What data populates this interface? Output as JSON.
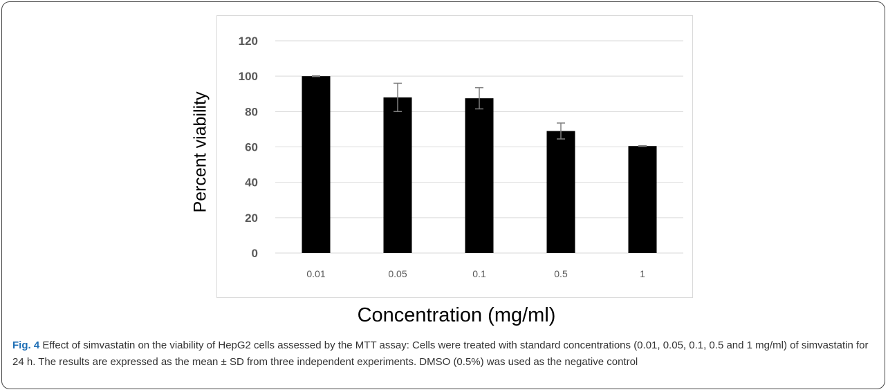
{
  "chart_data": {
    "type": "bar",
    "categories": [
      "0.01",
      "0.05",
      "0.1",
      "0.5",
      "1"
    ],
    "values": [
      100,
      88,
      87.5,
      69,
      60.5
    ],
    "errors": [
      0.2,
      8,
      6,
      4.5,
      0.2
    ],
    "xlabel": "Concentration (mg/ml)",
    "ylabel": "Percent viability",
    "ylim": [
      0,
      120
    ],
    "yticks": [
      0,
      20,
      40,
      60,
      80,
      100,
      120
    ],
    "grid": true,
    "bar_color": "#000000",
    "error_bar_color": "#7f7f7f",
    "grid_color": "#d9d9d9",
    "tick_label_color": "#595959"
  },
  "caption": {
    "label": "Fig. 4",
    "text": "Effect of simvastatin on the viability of HepG2 cells assessed by the MTT assay: Cells were treated with standard concentrations (0.01, 0.05, 0.1, 0.5 and 1 mg/ml) of simvastatin for 24 h. The results are expressed as the mean ± SD from three independent experiments. DMSO (0.5%) was used as the negative control"
  }
}
